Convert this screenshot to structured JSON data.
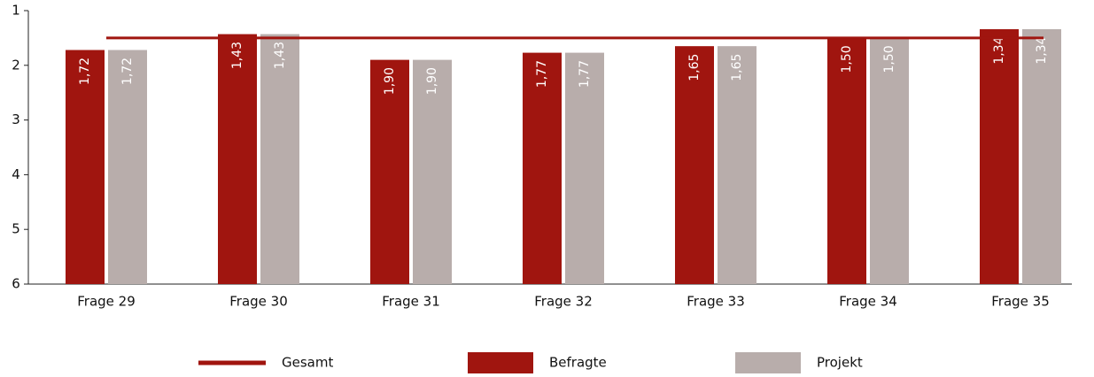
{
  "chart_data": {
    "type": "bar",
    "categories": [
      "Frage 29",
      "Frage 30",
      "Frage 31",
      "Frage 32",
      "Frage 33",
      "Frage 34",
      "Frage 35"
    ],
    "series": [
      {
        "name": "Befragte",
        "color": "#a0150f",
        "values": [
          1.72,
          1.43,
          1.9,
          1.77,
          1.65,
          1.5,
          1.34
        ],
        "value_labels": [
          "1,72",
          "1,43",
          "1,90",
          "1,77",
          "1,65",
          "1,50",
          "1,34"
        ]
      },
      {
        "name": "Projekt",
        "color": "#b8adab",
        "values": [
          1.72,
          1.43,
          1.9,
          1.77,
          1.65,
          1.5,
          1.34
        ],
        "value_labels": [
          "1,72",
          "1,43",
          "1,90",
          "1,77",
          "1,65",
          "1,50",
          "1,34"
        ]
      }
    ],
    "reference_line": {
      "name": "Gesamt",
      "color": "#a0150f",
      "value": 1.5
    },
    "ylim": [
      6,
      1
    ],
    "yticks": [
      1,
      2,
      3,
      4,
      5,
      6
    ],
    "legend": "bottom"
  }
}
